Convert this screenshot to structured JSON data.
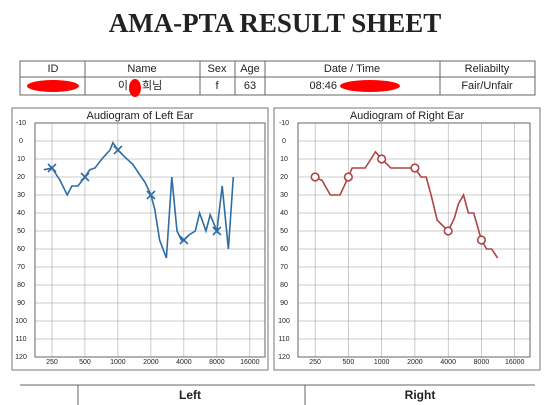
{
  "header": {
    "title": "AMA-PTA RESULT SHEET",
    "columns": [
      "ID",
      "Name",
      "Sex",
      "Age",
      "Date / Time",
      "Reliabilty"
    ],
    "name_start": "이",
    "name_end": "희님",
    "sex": "f",
    "age": "63",
    "time": "08:46",
    "reliability": "Fair/Unfair"
  },
  "chart_data": [
    {
      "type": "line",
      "title": "Audiogram of Left Ear",
      "log_x": true,
      "y_inverted": true,
      "grid": true,
      "xlim": [
        175,
        22000
      ],
      "xticks": [
        250,
        500,
        1000,
        2000,
        4000,
        8000,
        16000
      ],
      "ylim": [
        -10,
        120
      ],
      "yticks": [
        -10,
        0,
        10,
        20,
        30,
        40,
        50,
        60,
        70,
        80,
        90,
        100,
        110,
        120
      ],
      "series": [
        {
          "color": "#2e6da4",
          "marker": "none",
          "x": [
            211,
            250,
            297,
            344,
            380,
            431,
            500,
            553,
            617,
            714,
            847,
            900,
            1000,
            1160,
            1370,
            1590,
            1770,
            2000,
            2170,
            2400,
            2770,
            3100,
            3460,
            3800,
            4000,
            4500,
            5080,
            5560,
            6360,
            6960,
            8000,
            8950,
            10200,
            11300
          ],
          "values": [
            16,
            15,
            22,
            30,
            25,
            25,
            20,
            16,
            15,
            10,
            5,
            1,
            5,
            9,
            13,
            19,
            23,
            30,
            38,
            55,
            65,
            20,
            50,
            55,
            55,
            52,
            50,
            40,
            50,
            41,
            50,
            25,
            60,
            20
          ]
        },
        {
          "color": "#2e6da4",
          "marker": "x",
          "x": [
            250,
            500,
            1000,
            2000,
            4000,
            8000
          ],
          "values": [
            15,
            20,
            5,
            30,
            55,
            50
          ]
        }
      ]
    },
    {
      "type": "line",
      "title": "Audiogram of Right Ear",
      "log_x": true,
      "y_inverted": true,
      "grid": true,
      "xlim": [
        175,
        22000
      ],
      "xticks": [
        250,
        500,
        1000,
        2000,
        4000,
        8000,
        16000
      ],
      "ylim": [
        -10,
        120
      ],
      "yticks": [
        -10,
        0,
        10,
        20,
        30,
        40,
        50,
        60,
        70,
        80,
        90,
        100,
        110,
        120
      ],
      "series": [
        {
          "color": "#b04444",
          "marker": "none",
          "x": [
            250,
            290,
            343,
            420,
            500,
            540,
            710,
            880,
            1000,
            1210,
            1620,
            2000,
            2270,
            2530,
            2800,
            3180,
            4000,
            4540,
            4950,
            5500,
            6100,
            6800,
            8000,
            8900,
            9900,
            11200
          ],
          "values": [
            20,
            22,
            30,
            30,
            20,
            15,
            15,
            6,
            10,
            15,
            15,
            15,
            20,
            20,
            30,
            44,
            50,
            43,
            35,
            30,
            40,
            40,
            55,
            60,
            60,
            65
          ]
        },
        {
          "color": "#b04444",
          "marker": "o",
          "x": [
            250,
            500,
            1000,
            2000,
            4000,
            8000
          ],
          "values": [
            20,
            20,
            10,
            15,
            50,
            55
          ]
        }
      ]
    }
  ],
  "footer": {
    "left": "Left",
    "right": "Right"
  }
}
